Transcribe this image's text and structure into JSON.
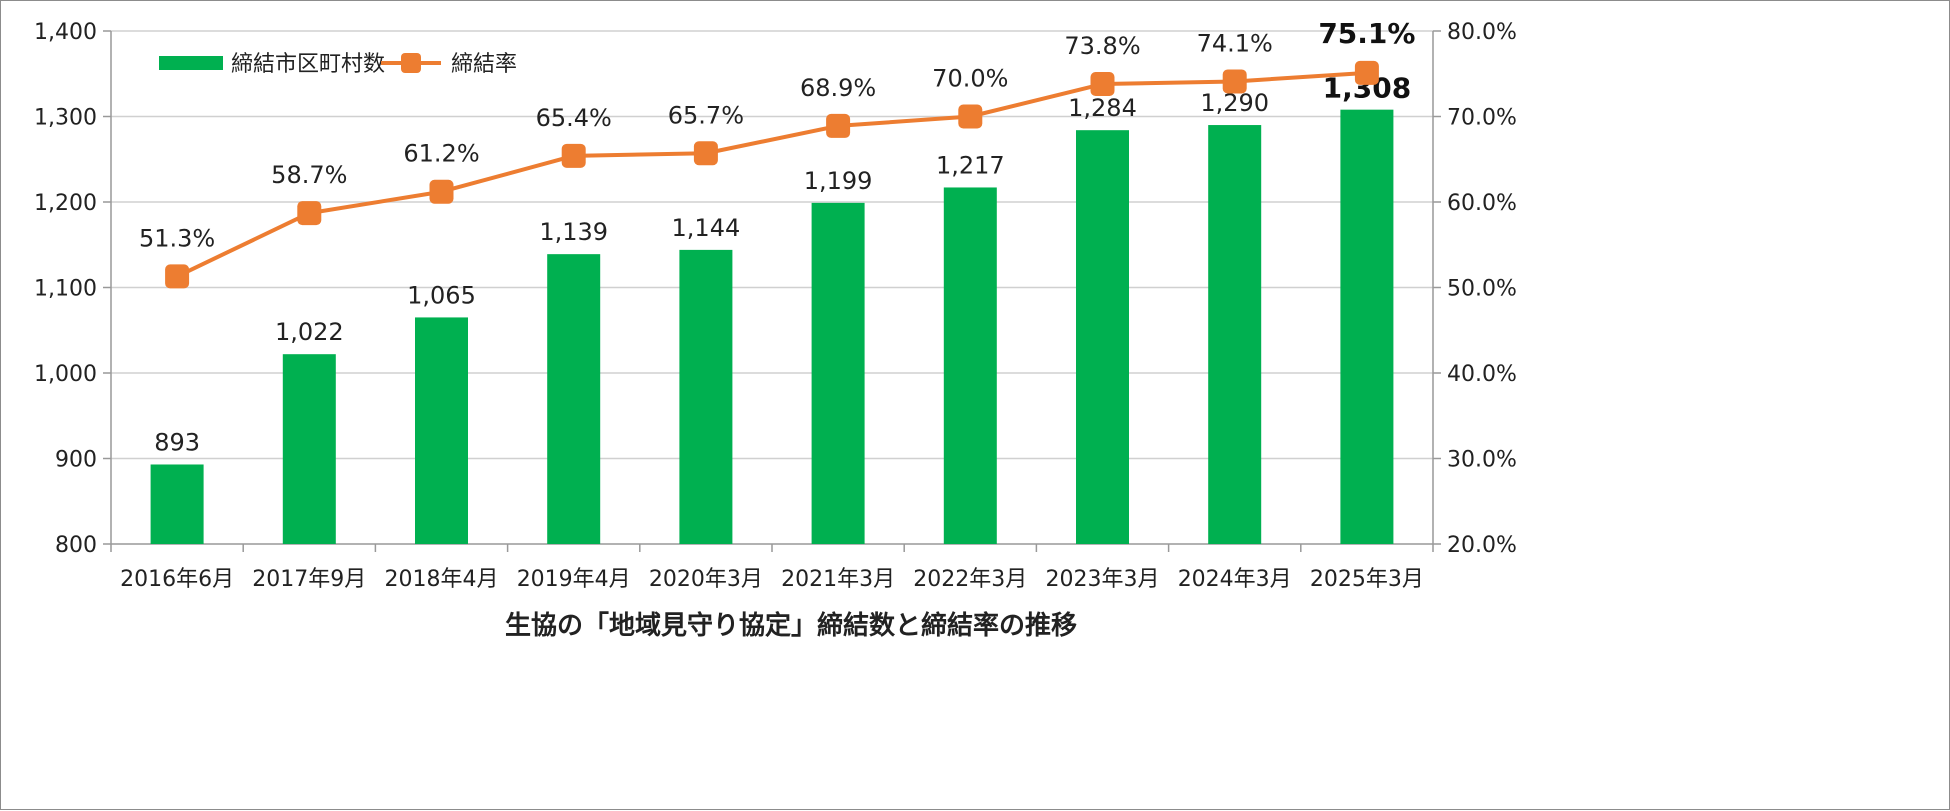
{
  "chart_data": {
    "type": "bar",
    "title": "生協の「地域見守り協定」締結数と締結率の推移",
    "categories": [
      "2016年6月",
      "2017年9月",
      "2018年4月",
      "2019年4月",
      "2020年3月",
      "2021年3月",
      "2022年3月",
      "2023年3月",
      "2024年3月",
      "2025年3月"
    ],
    "series": [
      {
        "name": "締結市区町村数",
        "type": "bar",
        "axis": "left",
        "color": "#00b050",
        "values": [
          893,
          1022,
          1065,
          1139,
          1144,
          1199,
          1217,
          1284,
          1290,
          1308
        ],
        "labels": [
          "893",
          "1,022",
          "1,065",
          "1,139",
          "1,144",
          "1,199",
          "1,217",
          "1,284",
          "1,290",
          "1,308"
        ]
      },
      {
        "name": "締結率",
        "type": "line",
        "axis": "right",
        "color": "#ed7d31",
        "values": [
          51.3,
          58.7,
          61.2,
          65.4,
          65.7,
          68.9,
          70.0,
          73.8,
          74.1,
          75.1
        ],
        "labels": [
          "51.3%",
          "58.7%",
          "61.2%",
          "65.4%",
          "65.7%",
          "68.9%",
          "70.0%",
          "73.8%",
          "74.1%",
          "75.1%"
        ]
      }
    ],
    "y_left": {
      "min": 800,
      "max": 1400,
      "step": 100,
      "ticks": [
        "800",
        "900",
        "1,000",
        "1,100",
        "1,200",
        "1,300",
        "1,400"
      ]
    },
    "y_right": {
      "min": 20,
      "max": 80,
      "step": 10,
      "ticks": [
        "20.0%",
        "30.0%",
        "40.0%",
        "50.0%",
        "60.0%",
        "70.0%",
        "80.0%"
      ]
    },
    "grid": true,
    "legend_position": "top-left",
    "highlight_last": true
  }
}
